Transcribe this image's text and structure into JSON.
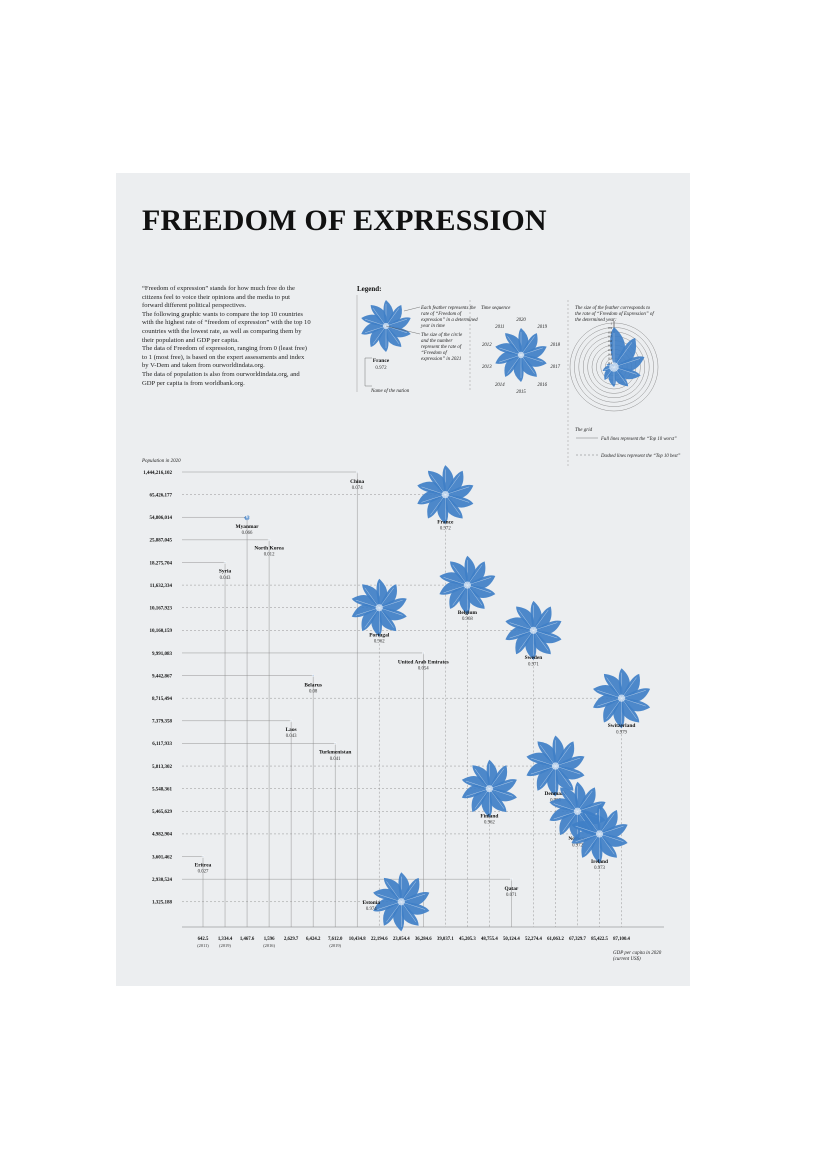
{
  "title": "FREEDOM OF EXPRESSION",
  "intro": [
    "“Freedom of expression” stands for how much free do the citizens feel to voice their opinions and the media to put forward different political perspectives.",
    "The following graphic wants to compare the top 10 countries with the highest rate of “freedom of expression” with the top 10 countries with the lowest rate, as well as comparing them by their population and GDP per capita.",
    "The data of Freedom of expression, ranging from 0 (least free) to 1 (most free), is based on the expert assessments and index by V-Dem and taken from ourworldindata.org.",
    "The data of population is also from ourworldindata.org, and GDP per capita is from worldbank.org."
  ],
  "legend": {
    "title": "Legend:",
    "feather_note": "Each feather represents the rate of “Freedom of expression” in a determined year in time",
    "circle_note": "The size of the circle and the number represent the rate of “Freedom of expression” in 2021",
    "sample_name": "France",
    "sample_value": "0.972",
    "name_note": "Name of the nation",
    "time_title": "Time sequence",
    "years": [
      "2020",
      "2019",
      "2018",
      "2017",
      "2016",
      "2015",
      "2014",
      "2013",
      "2012",
      "2011"
    ],
    "size_note": "The size of the feather corresponds to the rate of “Freedom of Expression” of the determined year:",
    "scale_labels": [
      "1",
      "0.9",
      "0.8",
      "0.7",
      "0.6",
      "0.5",
      "0.4",
      "0.3",
      "0.2",
      "0.1"
    ],
    "grid_title": "The grid",
    "grid_full": "Full lines represent the “Top 10 worst”",
    "grid_dashed": "Dashed lines represent the “Top 10 best”"
  },
  "colors": {
    "feather": "#3f7fc7",
    "grid": "#8a8a8a",
    "text": "#222222"
  },
  "chart_data": {
    "type": "scatter",
    "ylabel": "Population in 2020",
    "xlabel": "GDP per capita in 2020 (current US$)",
    "y_ticks": [
      "1,444,216,102",
      "65,426,177",
      "54,806,014",
      "25,887,045",
      "18,275,704",
      "11,632,334",
      "10,167,923",
      "10,160,159",
      "9,991,083",
      "9,442,867",
      "8,715,494",
      "7,379,358",
      "6,117,933",
      "5,813,302",
      "5,548,361",
      "5,465,629",
      "4,982,904",
      "3,601,462",
      "2,930,524",
      "1,325,188"
    ],
    "x_ticks": [
      {
        "label": "642.5",
        "note": "(2011)"
      },
      {
        "label": "1,334.4",
        "note": "(2019)"
      },
      {
        "label": "1,467.6",
        "note": ""
      },
      {
        "label": "1,596",
        "note": "(2016)"
      },
      {
        "label": "2,629.7",
        "note": ""
      },
      {
        "label": "6,424.2",
        "note": ""
      },
      {
        "label": "7,612.0",
        "note": "(2019)"
      },
      {
        "label": "10,434.8",
        "note": ""
      },
      {
        "label": "22,194.6",
        "note": ""
      },
      {
        "label": "23,054.4",
        "note": ""
      },
      {
        "label": "36,284.6",
        "note": ""
      },
      {
        "label": "39,037.1",
        "note": ""
      },
      {
        "label": "45,205.3",
        "note": ""
      },
      {
        "label": "48,755.4",
        "note": ""
      },
      {
        "label": "50,124.4",
        "note": ""
      },
      {
        "label": "52,274.4",
        "note": ""
      },
      {
        "label": "61,063.2",
        "note": ""
      },
      {
        "label": "67,329.7",
        "note": ""
      },
      {
        "label": "85,422.5",
        "note": ""
      },
      {
        "label": "87,100.4",
        "note": ""
      }
    ],
    "points": [
      {
        "name": "China",
        "value": "0.074",
        "fe": 0.074,
        "x_index": 7,
        "y_index": 0,
        "group": "worst",
        "feathers": [
          0.1,
          0.1,
          0.1,
          0.09,
          0.08,
          0.08,
          0.08,
          0.07,
          0.07,
          0.07
        ]
      },
      {
        "name": "France",
        "value": "0.972",
        "fe": 0.972,
        "x_index": 11,
        "y_index": 1,
        "group": "best",
        "feathers": [
          0.97,
          0.97,
          0.97,
          0.97,
          0.97,
          0.97,
          0.97,
          0.97,
          0.97,
          0.97
        ]
      },
      {
        "name": "Myanmar",
        "value": "0.066",
        "fe": 0.066,
        "x_index": 2,
        "y_index": 2,
        "group": "worst",
        "feathers": [
          0.4,
          0.5,
          0.55,
          0.6,
          0.62,
          0.65,
          0.66,
          0.66,
          0.5,
          0.07
        ]
      },
      {
        "name": "North Korea",
        "value": "0.012",
        "fe": 0.012,
        "x_index": 3,
        "y_index": 3,
        "group": "worst",
        "feathers": [
          0.01,
          0.01,
          0.01,
          0.01,
          0.01,
          0.01,
          0.01,
          0.01,
          0.01,
          0.01
        ]
      },
      {
        "name": "Syria",
        "value": "0.043",
        "fe": 0.043,
        "x_index": 1,
        "y_index": 4,
        "group": "worst",
        "feathers": [
          0.05,
          0.05,
          0.04,
          0.04,
          0.04,
          0.04,
          0.04,
          0.04,
          0.04,
          0.04
        ]
      },
      {
        "name": "Belgium",
        "value": "0.968",
        "fe": 0.968,
        "x_index": 12,
        "y_index": 5,
        "group": "best",
        "feathers": [
          0.97,
          0.97,
          0.97,
          0.97,
          0.97,
          0.97,
          0.97,
          0.97,
          0.97,
          0.97
        ]
      },
      {
        "name": "Portugal",
        "value": "0.962",
        "fe": 0.962,
        "x_index": 8,
        "y_index": 6,
        "group": "best",
        "feathers": [
          0.96,
          0.96,
          0.96,
          0.96,
          0.96,
          0.96,
          0.96,
          0.96,
          0.96,
          0.96
        ]
      },
      {
        "name": "Sweden",
        "value": "0.971",
        "fe": 0.971,
        "x_index": 15,
        "y_index": 7,
        "group": "best",
        "feathers": [
          0.97,
          0.97,
          0.97,
          0.97,
          0.97,
          0.97,
          0.97,
          0.97,
          0.97,
          0.97
        ]
      },
      {
        "name": "United Arab Emirates",
        "value": "0.054",
        "fe": 0.054,
        "x_index": 10,
        "y_index": 8,
        "group": "worst",
        "feathers": [
          0.06,
          0.06,
          0.06,
          0.06,
          0.06,
          0.05,
          0.05,
          0.05,
          0.05,
          0.05
        ]
      },
      {
        "name": "Belarus",
        "value": "0.08",
        "fe": 0.08,
        "x_index": 5,
        "y_index": 9,
        "group": "worst",
        "feathers": [
          0.2,
          0.2,
          0.2,
          0.2,
          0.2,
          0.2,
          0.2,
          0.2,
          0.15,
          0.08
        ]
      },
      {
        "name": "Switzerland",
        "value": "0.979",
        "fe": 0.979,
        "x_index": 19,
        "y_index": 10,
        "group": "best",
        "feathers": [
          0.98,
          0.98,
          0.98,
          0.98,
          0.98,
          0.98,
          0.98,
          0.98,
          0.98,
          0.98
        ]
      },
      {
        "name": "Laos",
        "value": "0.043",
        "fe": 0.043,
        "x_index": 4,
        "y_index": 11,
        "group": "worst",
        "feathers": [
          0.05,
          0.05,
          0.05,
          0.05,
          0.05,
          0.05,
          0.05,
          0.04,
          0.04,
          0.04
        ]
      },
      {
        "name": "Turkmenistan",
        "value": "0.041",
        "fe": 0.041,
        "x_index": 6,
        "y_index": 12,
        "group": "worst",
        "feathers": [
          0.04,
          0.04,
          0.04,
          0.04,
          0.04,
          0.04,
          0.04,
          0.04,
          0.04,
          0.04
        ]
      },
      {
        "name": "Denmark",
        "value": "0.986",
        "fe": 0.986,
        "x_index": 16,
        "y_index": 13,
        "group": "best",
        "feathers": [
          0.99,
          0.99,
          0.99,
          0.99,
          0.99,
          0.99,
          0.99,
          0.99,
          0.99,
          0.99
        ]
      },
      {
        "name": "Finland",
        "value": "0.962",
        "fe": 0.962,
        "x_index": 13,
        "y_index": 14,
        "group": "best",
        "feathers": [
          0.96,
          0.96,
          0.96,
          0.96,
          0.96,
          0.96,
          0.96,
          0.96,
          0.96,
          0.96
        ]
      },
      {
        "name": "Norway",
        "value": "0.972",
        "fe": 0.972,
        "x_index": 17,
        "y_index": 15,
        "group": "best",
        "feathers": [
          0.97,
          0.97,
          0.97,
          0.97,
          0.97,
          0.97,
          0.97,
          0.97,
          0.97,
          0.97
        ]
      },
      {
        "name": "Ireland",
        "value": "0.973",
        "fe": 0.973,
        "x_index": 18,
        "y_index": 16,
        "group": "best",
        "feathers": [
          0.97,
          0.97,
          0.97,
          0.97,
          0.97,
          0.97,
          0.97,
          0.97,
          0.97,
          0.97
        ]
      },
      {
        "name": "Eritrea",
        "value": "0.027",
        "fe": 0.027,
        "x_index": 0,
        "y_index": 17,
        "group": "worst",
        "feathers": [
          0.03,
          0.03,
          0.03,
          0.03,
          0.03,
          0.03,
          0.03,
          0.03,
          0.03,
          0.03
        ]
      },
      {
        "name": "Qatar",
        "value": "0.071",
        "fe": 0.071,
        "x_index": 14,
        "y_index": 18,
        "group": "worst",
        "feathers": [
          0.07,
          0.07,
          0.07,
          0.07,
          0.07,
          0.07,
          0.07,
          0.07,
          0.07,
          0.07
        ]
      },
      {
        "name": "Estonia",
        "value": "0.974",
        "fe": 0.974,
        "x_index": 9,
        "y_index": 19,
        "group": "best",
        "feathers": [
          0.97,
          0.97,
          0.97,
          0.97,
          0.97,
          0.97,
          0.97,
          0.97,
          0.97,
          0.97
        ]
      }
    ]
  }
}
